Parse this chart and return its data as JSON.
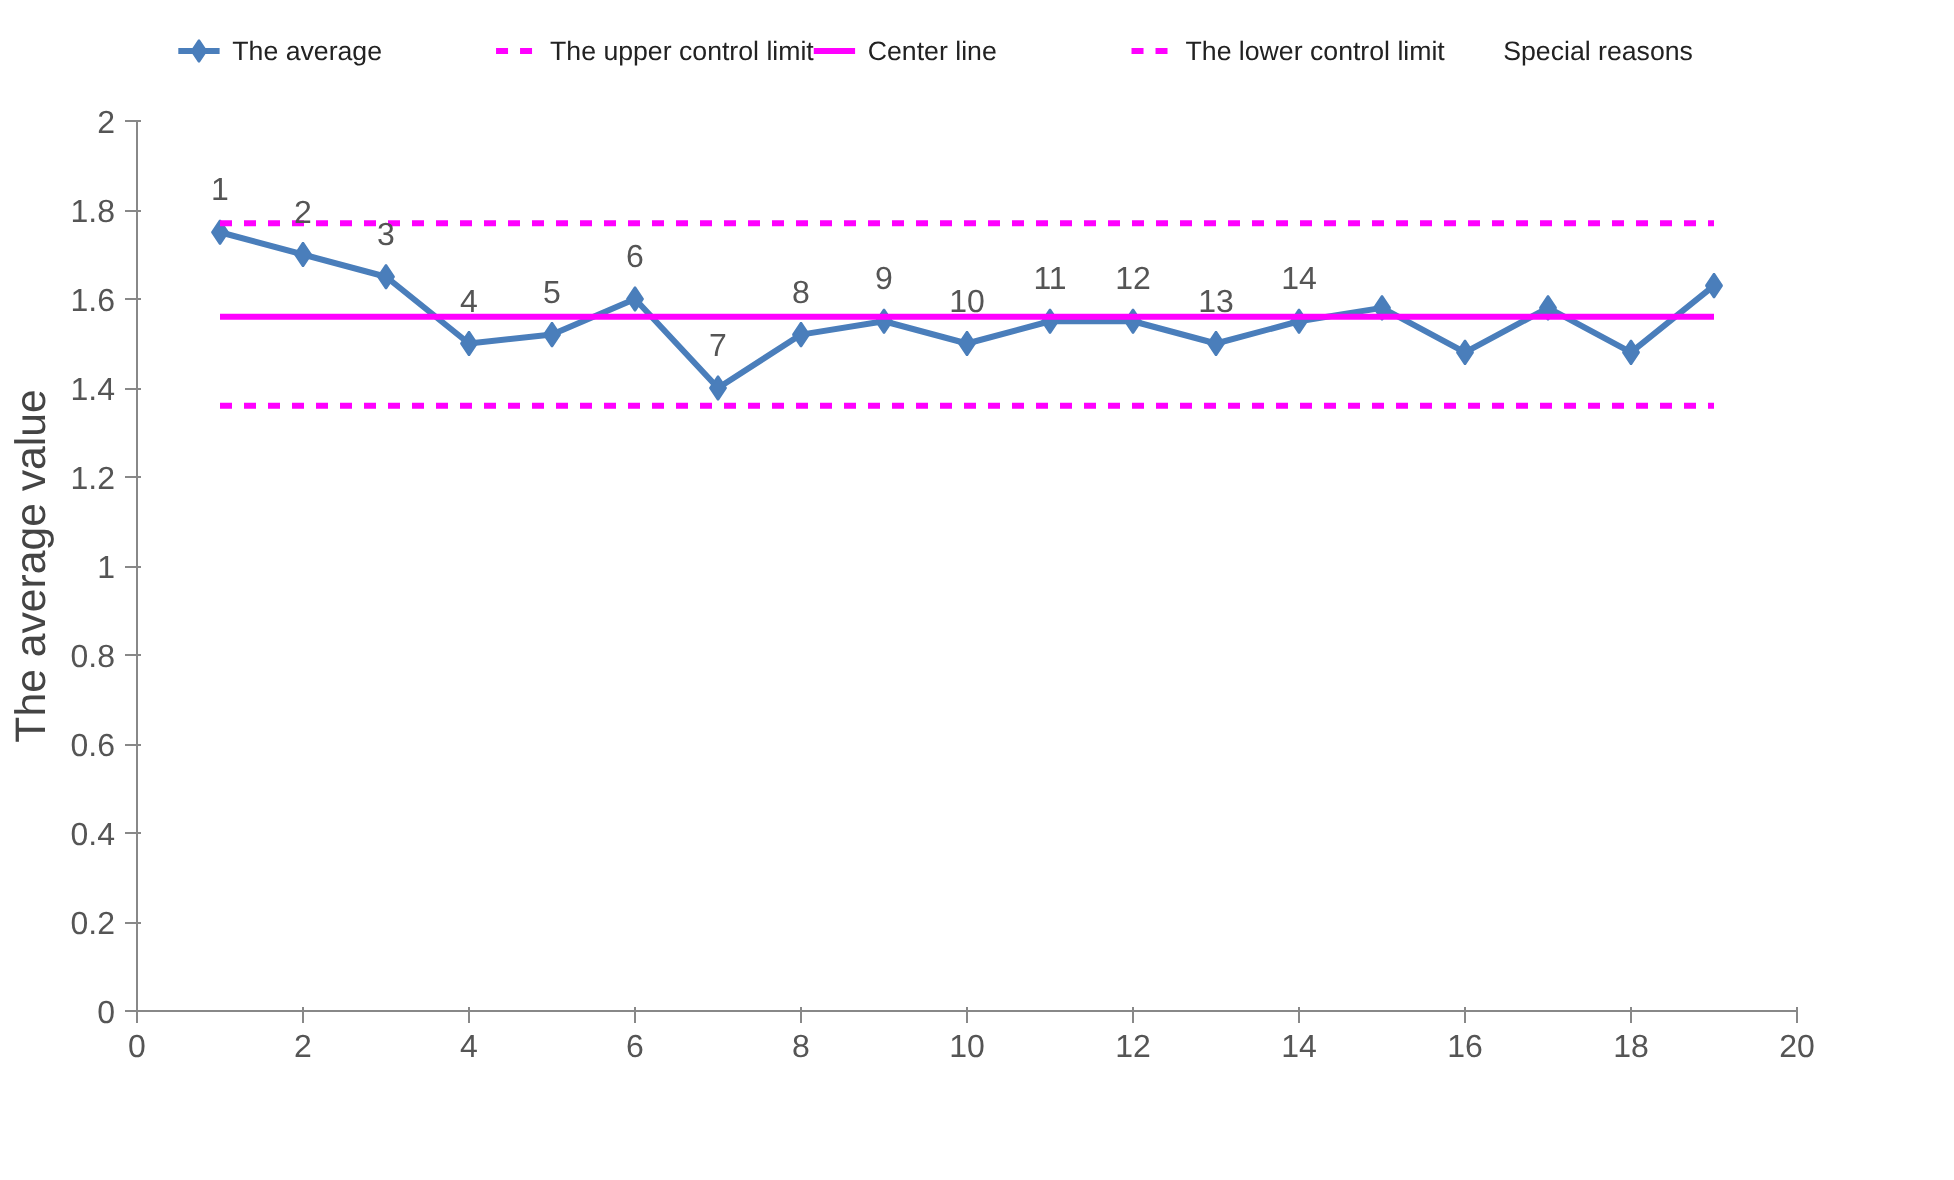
{
  "chart_data": {
    "type": "line",
    "ylabel": "The average value",
    "x": [
      1,
      2,
      3,
      4,
      5,
      6,
      7,
      8,
      9,
      10,
      11,
      12,
      13,
      14,
      15,
      16,
      17,
      18,
      19
    ],
    "series": [
      {
        "name": "The average",
        "color": "#4a7ebb",
        "values": [
          1.75,
          1.7,
          1.65,
          1.5,
          1.52,
          1.6,
          1.4,
          1.52,
          1.55,
          1.5,
          1.55,
          1.55,
          1.5,
          1.55,
          1.58,
          1.48,
          1.58,
          1.48,
          1.63
        ]
      }
    ],
    "ref_lines": [
      {
        "axis": "y",
        "value": 1.77,
        "label": "The upper control limit",
        "color": "#ff00ff",
        "line_style": "dashed"
      },
      {
        "axis": "y",
        "value": 1.56,
        "label": "Center line",
        "color": "#ff00ff",
        "line_style": "solid"
      },
      {
        "axis": "y",
        "value": 1.36,
        "label": "The lower control limit",
        "color": "#ff00ff",
        "line_style": "dashed"
      }
    ],
    "annotations": [
      "Special reasons",
      {
        "text": "1",
        "x": 1,
        "y": 1.75
      },
      {
        "text": "2",
        "x": 2,
        "y": 1.7
      },
      {
        "text": "3",
        "x": 3,
        "y": 1.65
      },
      {
        "text": "4",
        "x": 4,
        "y": 1.5
      },
      {
        "text": "5",
        "x": 5,
        "y": 1.52
      },
      {
        "text": "6",
        "x": 6,
        "y": 1.6
      },
      {
        "text": "7",
        "x": 7,
        "y": 1.4
      },
      {
        "text": "8",
        "x": 8,
        "y": 1.52
      },
      {
        "text": "9",
        "x": 9,
        "y": 1.55
      },
      {
        "text": "10",
        "x": 10,
        "y": 1.5
      },
      {
        "text": "11",
        "x": 11,
        "y": 1.55
      },
      {
        "text": "12",
        "x": 12,
        "y": 1.55
      },
      {
        "text": "13",
        "x": 13,
        "y": 1.5
      },
      {
        "text": "14",
        "x": 14,
        "y": 1.55
      }
    ],
    "xlim": [
      0,
      20
    ],
    "xticks": [
      0,
      2,
      4,
      6,
      8,
      10,
      12,
      14,
      16,
      18,
      20
    ],
    "ylim": [
      0,
      2
    ],
    "yticks": [
      0,
      0.2,
      0.4,
      0.6,
      0.8,
      1,
      1.2,
      1.4,
      1.6,
      1.8,
      2
    ],
    "grid": false,
    "legend": "top",
    "marker": "diamond",
    "line_style": "solid"
  }
}
